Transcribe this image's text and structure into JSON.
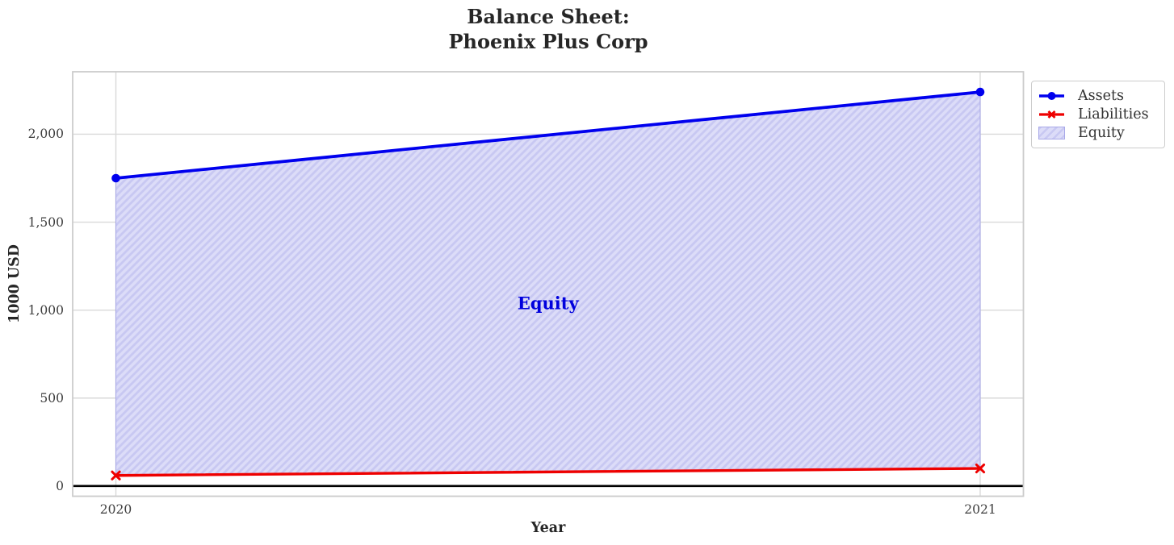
{
  "title": {
    "line1": "Balance Sheet:",
    "line2": "Phoenix Plus Corp"
  },
  "axes": {
    "x_label": "Year",
    "y_label": "1000 USD",
    "x_tick_labels": [
      "2020",
      "2021"
    ],
    "y_tick_labels": [
      "0",
      "500",
      "1,000",
      "1,500",
      "2,000"
    ]
  },
  "legend": {
    "items": [
      {
        "label": "Assets",
        "icon": "blue-line-circle-marker"
      },
      {
        "label": "Liabilities",
        "icon": "red-line-x-marker"
      },
      {
        "label": "Equity",
        "icon": "hatched-patch"
      }
    ]
  },
  "colors": {
    "assets": "#0000ee",
    "liabilities": "#ee0000",
    "equity_fill": "#dcdcf8",
    "equity_hatch": "#c8c8f2",
    "equity_edge": "#a8a8e8",
    "grid": "#d9d9d9",
    "spine": "#cccccc",
    "zero_line": "#000000",
    "annotation": "#0000dd",
    "title_text": "#262626",
    "tick_text": "#3d3d3d",
    "legend_text": "#333333"
  },
  "chart_data": {
    "type": "line",
    "title": "Balance Sheet: Phoenix Plus Corp",
    "x": [
      2020,
      2021
    ],
    "series": [
      {
        "name": "Assets",
        "values": [
          1750,
          2240
        ],
        "color": "#0000ee",
        "marker": "circle"
      },
      {
        "name": "Liabilities",
        "values": [
          60,
          100
        ],
        "color": "#ee0000",
        "marker": "x"
      }
    ],
    "area": {
      "name": "Equity",
      "between": [
        "Liabilities",
        "Assets"
      ],
      "values": [
        1690,
        2140
      ],
      "hatch": "/"
    },
    "annotation": {
      "text": "Equity",
      "x": 2020.5,
      "y": 1040
    },
    "xlabel": "Year",
    "ylabel": "1000 USD",
    "xticks": [
      2020,
      2021
    ],
    "yticks": [
      0,
      500,
      1000,
      1500,
      2000
    ],
    "xlim": [
      2019.95,
      2021.05
    ],
    "ylim": [
      -58,
      2355
    ],
    "grid": true,
    "zero_line": true,
    "legend_position": "outside upper right"
  }
}
